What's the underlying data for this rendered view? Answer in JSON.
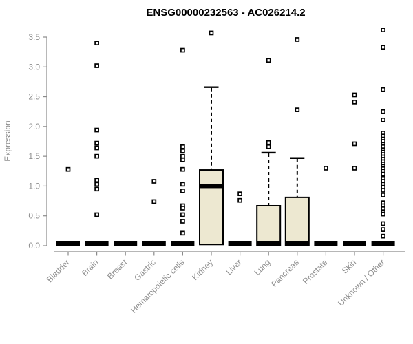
{
  "title": "ENSG00000232563 - AC026214.2",
  "colors": {
    "background": "#ffffff",
    "box_fill": "#EDE8D1",
    "box_stroke": "#000000",
    "median_color": "#000000",
    "axis_line": "#8a8a8a",
    "axis_text": "#8f8f8f",
    "title_color": "#000000",
    "outlier_fill": "#ffffff",
    "outlier_stroke": "#000000"
  },
  "chart_data": {
    "type": "boxplot",
    "title": "ENSG00000232563 - AC026214.2",
    "xlabel": "",
    "ylabel": "Expression",
    "ylim": [
      0,
      3.5
    ],
    "yticks": [
      0.0,
      0.5,
      1.0,
      1.5,
      2.0,
      2.5,
      3.0,
      3.5
    ],
    "ytick_labels": [
      "0.0",
      "0.5",
      "1.0",
      "1.5",
      "2.0",
      "2.5",
      "3.0",
      "3.5"
    ],
    "grid": false,
    "legend": "none",
    "x_label_rotation_deg": 45,
    "categories": [
      "Bladder",
      "Brain",
      "Breast",
      "Gastric",
      "Hematopoietic cells",
      "Kidney",
      "Liver",
      "Lung",
      "Pancreas",
      "Prostate",
      "Skin",
      "Unknown / Other"
    ],
    "boxes": [
      {
        "category": "Bladder",
        "q1": 0,
        "median": 0,
        "q3": 0,
        "whisker_low": 0,
        "whisker_high": 0,
        "outliers": [
          1.28
        ]
      },
      {
        "category": "Brain",
        "q1": 0,
        "median": 0,
        "q3": 0,
        "whisker_low": 0,
        "whisker_high": 0,
        "outliers": [
          3.4,
          3.02,
          1.94,
          1.72,
          1.64,
          1.5,
          1.1,
          1.03,
          0.95,
          0.52
        ]
      },
      {
        "category": "Breast",
        "q1": 0,
        "median": 0,
        "q3": 0,
        "whisker_low": 0,
        "whisker_high": 0,
        "outliers": []
      },
      {
        "category": "Gastric",
        "q1": 0,
        "median": 0,
        "q3": 0,
        "whisker_low": 0,
        "whisker_high": 0,
        "outliers": [
          1.08,
          0.74
        ]
      },
      {
        "category": "Hematopoietic cells",
        "q1": 0,
        "median": 0,
        "q3": 0,
        "whisker_low": 0,
        "whisker_high": 0,
        "outliers": [
          3.28,
          1.66,
          1.59,
          1.5,
          1.44,
          1.28,
          1.03,
          0.92,
          0.67,
          0.63,
          0.52,
          0.41,
          0.21
        ]
      },
      {
        "category": "Kidney",
        "q1": 0.02,
        "median": 1.0,
        "q3": 1.27,
        "whisker_low": 0.02,
        "whisker_high": 2.66,
        "outliers": [
          3.57
        ]
      },
      {
        "category": "Liver",
        "q1": 0,
        "median": 0,
        "q3": 0,
        "whisker_low": 0,
        "whisker_high": 0,
        "outliers": [
          0.87,
          0.76
        ]
      },
      {
        "category": "Lung",
        "q1": 0,
        "median": 0,
        "q3": 0.67,
        "whisker_low": 0,
        "whisker_high": 1.56,
        "outliers": [
          3.11,
          1.73,
          1.66
        ]
      },
      {
        "category": "Pancreas",
        "q1": 0,
        "median": 0,
        "q3": 0.81,
        "whisker_low": 0,
        "whisker_high": 1.47,
        "outliers": [
          3.46,
          2.28
        ]
      },
      {
        "category": "Prostate",
        "q1": 0,
        "median": 0,
        "q3": 0,
        "whisker_low": 0,
        "whisker_high": 0,
        "outliers": [
          1.3
        ]
      },
      {
        "category": "Skin",
        "q1": 0,
        "median": 0,
        "q3": 0,
        "whisker_low": 0,
        "whisker_high": 0,
        "outliers": [
          2.53,
          2.41,
          1.71,
          1.3
        ]
      },
      {
        "category": "Unknown / Other",
        "q1": 0,
        "median": 0,
        "q3": 0,
        "whisker_low": 0,
        "whisker_high": 0,
        "outliers": [
          3.62,
          3.33,
          2.62,
          2.25,
          2.11,
          1.89,
          1.84,
          1.79,
          1.75,
          1.7,
          1.66,
          1.61,
          1.57,
          1.53,
          1.49,
          1.45,
          1.41,
          1.37,
          1.33,
          1.29,
          1.25,
          1.2,
          1.13,
          1.08,
          1.03,
          0.98,
          0.93,
          0.85,
          0.72,
          0.67,
          0.62,
          0.57,
          0.53,
          0.37,
          0.27,
          0.16
        ]
      }
    ]
  }
}
